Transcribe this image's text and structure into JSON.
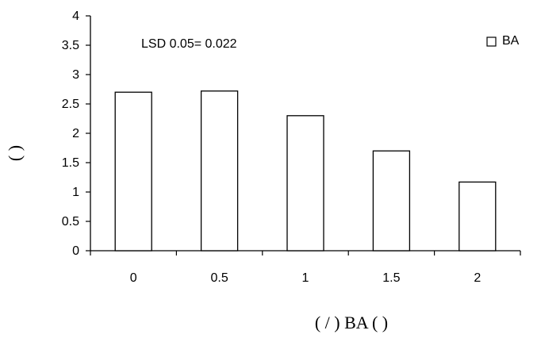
{
  "chart_data": {
    "type": "bar",
    "categories": [
      "0",
      "0.5",
      "1",
      "1.5",
      "2"
    ],
    "series": [
      {
        "name": "BA",
        "values": [
          2.7,
          2.72,
          2.3,
          1.7,
          1.17
        ]
      }
    ],
    "title": "",
    "annotation": "LSD 0.05= 0.022",
    "xlabel": "(   /     ) BA ( )",
    "ylabel": "(  )",
    "ylim": [
      0,
      4
    ],
    "yticks": [
      "0",
      "0.5",
      "1",
      "1.5",
      "2",
      "2.5",
      "3",
      "3.5",
      "4"
    ],
    "grid": false,
    "legend_position": "top-right",
    "colors": {
      "bar_fill": "#ffffff",
      "bar_stroke": "#000000",
      "axis": "#000000"
    }
  }
}
